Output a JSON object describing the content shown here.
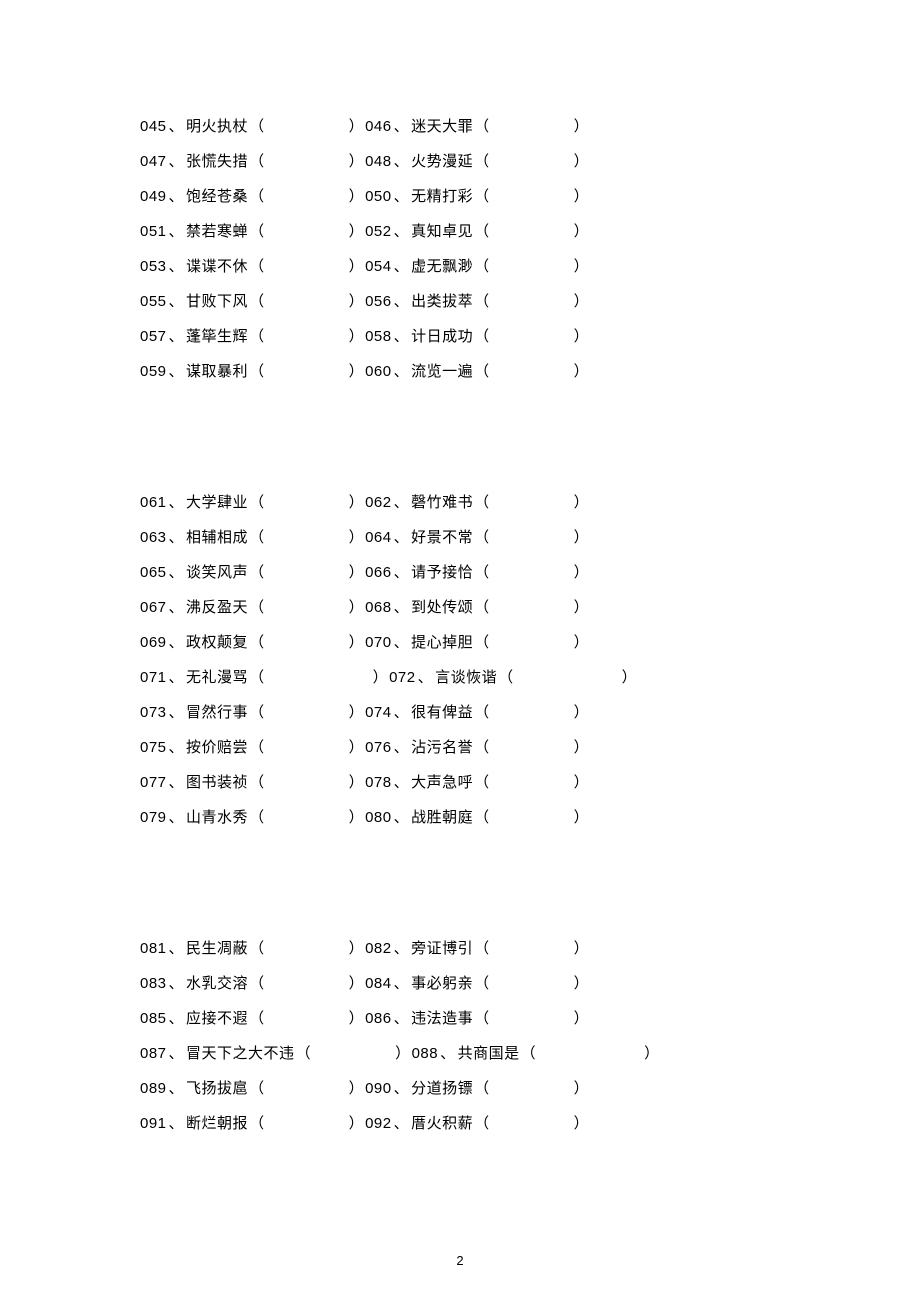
{
  "groups": [
    {
      "rows": [
        {
          "left": {
            "num": "045",
            "text": "明火执杖",
            "wide": false
          },
          "right": {
            "num": "046",
            "text": "迷天大罪",
            "wide": false
          }
        },
        {
          "left": {
            "num": "047",
            "text": "张慌失措",
            "wide": false
          },
          "right": {
            "num": "048",
            "text": "火势漫延",
            "wide": false
          }
        },
        {
          "left": {
            "num": "049",
            "text": "饱经苍桑",
            "wide": false
          },
          "right": {
            "num": "050",
            "text": "无精打彩",
            "wide": false
          }
        },
        {
          "left": {
            "num": "051",
            "text": "禁若寒蝉",
            "wide": false
          },
          "right": {
            "num": "052",
            "text": "真知卓见",
            "wide": false
          }
        },
        {
          "left": {
            "num": "053",
            "text": "谍谍不休",
            "wide": false
          },
          "right": {
            "num": "054",
            "text": "虚无飘渺",
            "wide": false
          }
        },
        {
          "left": {
            "num": "055",
            "text": "甘败下风",
            "wide": false
          },
          "right": {
            "num": "056",
            "text": "出类拔萃",
            "wide": false
          }
        },
        {
          "left": {
            "num": "057",
            "text": "蓬筚生辉",
            "wide": false
          },
          "right": {
            "num": "058",
            "text": "计日成功",
            "wide": false
          }
        },
        {
          "left": {
            "num": "059",
            "text": "谋取暴利",
            "wide": false
          },
          "right": {
            "num": "060",
            "text": "流览一遍",
            "wide": false
          }
        }
      ]
    },
    {
      "rows": [
        {
          "left": {
            "num": "061",
            "text": "大学肆业",
            "wide": false
          },
          "right": {
            "num": "062",
            "text": "磬竹难书",
            "wide": false
          }
        },
        {
          "left": {
            "num": "063",
            "text": "相辅相成",
            "wide": false
          },
          "right": {
            "num": "064",
            "text": "好景不常",
            "wide": false
          }
        },
        {
          "left": {
            "num": "065",
            "text": "谈笑风声",
            "wide": false
          },
          "right": {
            "num": "066",
            "text": "请予接恰",
            "wide": false
          }
        },
        {
          "left": {
            "num": "067",
            "text": "沸反盈天",
            "wide": false
          },
          "right": {
            "num": "068",
            "text": "到处传颂",
            "wide": false
          }
        },
        {
          "left": {
            "num": "069",
            "text": "政权颠复",
            "wide": false
          },
          "right": {
            "num": "070",
            "text": "提心掉胆",
            "wide": false
          }
        },
        {
          "left": {
            "num": "071",
            "text": "无礼漫骂",
            "wide": true
          },
          "right": {
            "num": "072",
            "text": "言谈恢谐",
            "wide": true
          }
        },
        {
          "left": {
            "num": "073",
            "text": "冒然行事",
            "wide": false
          },
          "right": {
            "num": "074",
            "text": "很有俾益",
            "wide": false
          }
        },
        {
          "left": {
            "num": "075",
            "text": "按价赔尝",
            "wide": false
          },
          "right": {
            "num": "076",
            "text": "沾污名誉",
            "wide": false
          }
        },
        {
          "left": {
            "num": "077",
            "text": "图书装祯",
            "wide": false
          },
          "right": {
            "num": "078",
            "text": "大声急呼",
            "wide": false
          }
        },
        {
          "left": {
            "num": "079",
            "text": "山青水秀",
            "wide": false
          },
          "right": {
            "num": "080",
            "text": "战胜朝庭",
            "wide": false
          }
        }
      ]
    },
    {
      "rows": [
        {
          "left": {
            "num": "081",
            "text": "民生凋蔽",
            "wide": false
          },
          "right": {
            "num": "082",
            "text": "旁证博引",
            "wide": false
          }
        },
        {
          "left": {
            "num": "083",
            "text": "水乳交溶",
            "wide": false
          },
          "right": {
            "num": "084",
            "text": "事必躬亲",
            "wide": false
          }
        },
        {
          "left": {
            "num": "085",
            "text": "应接不遐",
            "wide": false
          },
          "right": {
            "num": "086",
            "text": "违法造事",
            "wide": false
          }
        },
        {
          "left": {
            "num": "087",
            "text": "冒天下之大不违",
            "wide": false
          },
          "right": {
            "num": "088",
            "text": "共商国是",
            "wide": true
          }
        },
        {
          "left": {
            "num": "089",
            "text": "飞扬拔扈",
            "wide": false
          },
          "right": {
            "num": "090",
            "text": "分道扬镖",
            "wide": false
          }
        },
        {
          "left": {
            "num": "091",
            "text": "断烂朝报",
            "wide": false
          },
          "right": {
            "num": "092",
            "text": "厝火积薪",
            "wide": false
          }
        }
      ]
    }
  ],
  "pageNumber": "2",
  "parenOpen": "（",
  "parenClose": "）",
  "separator": "、"
}
